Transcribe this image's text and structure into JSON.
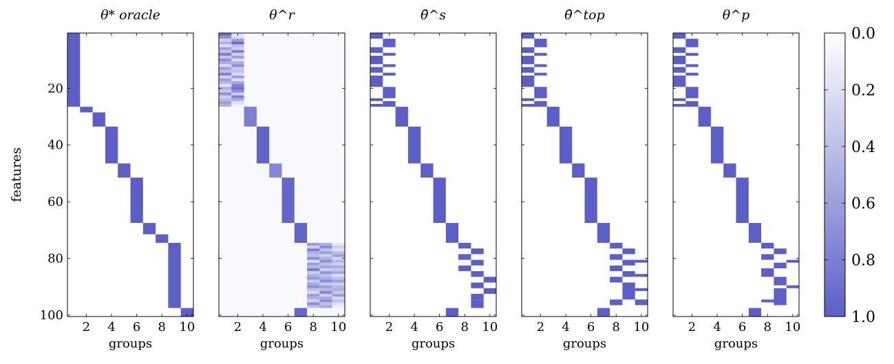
{
  "chart_data": [
    {
      "type": "heatmap",
      "title": "θ* oracle",
      "xlabel": "groups",
      "ylabel": "features",
      "x_ticks": [
        "2",
        "4",
        "6",
        "8",
        "10"
      ],
      "y_ticks": [
        "20",
        "40",
        "60",
        "80",
        "100"
      ],
      "groups": 10,
      "features": 100,
      "rows": [
        [
          1,
          1,
          26,
          1
        ],
        [
          2,
          27,
          28,
          1
        ],
        [
          3,
          29,
          33,
          1
        ],
        [
          4,
          34,
          46,
          1
        ],
        [
          5,
          47,
          51,
          1
        ],
        [
          6,
          52,
          67,
          1
        ],
        [
          7,
          68,
          71,
          1
        ],
        [
          8,
          72,
          74,
          1
        ],
        [
          9,
          75,
          97,
          1
        ],
        [
          10,
          98,
          100,
          1
        ]
      ]
    },
    {
      "type": "heatmap",
      "title": "θ^r",
      "xlabel": "groups",
      "groups": 10,
      "features": 100,
      "background": [
        [
          1,
          100,
          0.04
        ]
      ],
      "rows": [
        [
          1,
          1,
          1,
          0.9
        ],
        [
          2,
          1,
          1,
          0.15
        ],
        [
          1,
          2,
          2,
          0.7
        ],
        [
          2,
          2,
          2,
          0.2
        ],
        [
          1,
          3,
          3,
          0.3
        ],
        [
          2,
          3,
          3,
          0.6
        ],
        [
          1,
          4,
          4,
          0.5
        ],
        [
          2,
          4,
          4,
          0.9
        ],
        [
          1,
          5,
          5,
          0.2
        ],
        [
          2,
          5,
          5,
          0.4
        ],
        [
          1,
          6,
          6,
          0.6
        ],
        [
          2,
          6,
          6,
          0.3
        ],
        [
          1,
          7,
          7,
          0.4
        ],
        [
          2,
          7,
          7,
          0.8
        ],
        [
          1,
          8,
          8,
          0.8
        ],
        [
          2,
          8,
          8,
          0.3
        ],
        [
          1,
          9,
          9,
          0.35
        ],
        [
          2,
          9,
          9,
          0.6
        ],
        [
          1,
          10,
          10,
          0.7
        ],
        [
          2,
          10,
          10,
          0.2
        ],
        [
          1,
          11,
          11,
          0.5
        ],
        [
          2,
          11,
          11,
          0.5
        ],
        [
          1,
          12,
          12,
          0.25
        ],
        [
          2,
          12,
          12,
          0.7
        ],
        [
          1,
          13,
          13,
          0.6
        ],
        [
          2,
          13,
          13,
          0.35
        ],
        [
          1,
          14,
          14,
          0.4
        ],
        [
          2,
          14,
          14,
          0.4
        ],
        [
          1,
          15,
          15,
          0.8
        ],
        [
          2,
          15,
          15,
          0.25
        ],
        [
          1,
          16,
          16,
          0.3
        ],
        [
          2,
          16,
          16,
          0.6
        ],
        [
          1,
          17,
          17,
          0.6
        ],
        [
          2,
          17,
          17,
          0.2
        ],
        [
          1,
          18,
          18,
          0.45
        ],
        [
          2,
          18,
          18,
          0.55
        ],
        [
          1,
          19,
          19,
          0.2
        ],
        [
          2,
          19,
          19,
          0.8
        ],
        [
          1,
          20,
          20,
          0.5
        ],
        [
          2,
          20,
          20,
          0.9
        ],
        [
          1,
          21,
          21,
          0.35
        ],
        [
          2,
          21,
          21,
          0.7
        ],
        [
          1,
          22,
          22,
          0.7
        ],
        [
          2,
          22,
          22,
          0.3
        ],
        [
          1,
          23,
          23,
          0.3
        ],
        [
          2,
          23,
          23,
          0.8
        ],
        [
          1,
          24,
          24,
          0.45
        ],
        [
          2,
          24,
          24,
          0.5
        ],
        [
          1,
          25,
          25,
          0.6
        ],
        [
          2,
          25,
          25,
          0.2
        ],
        [
          1,
          26,
          26,
          0.5
        ],
        [
          2,
          26,
          26,
          0.1
        ],
        [
          3,
          27,
          33,
          0.8
        ],
        [
          4,
          34,
          46,
          0.97
        ],
        [
          5,
          47,
          51,
          0.75
        ],
        [
          6,
          52,
          67,
          0.95
        ],
        [
          7,
          68,
          74,
          0.97
        ],
        [
          8,
          75,
          75,
          0.6
        ],
        [
          9,
          75,
          75,
          0.5
        ],
        [
          10,
          75,
          75,
          0.15
        ],
        [
          8,
          76,
          76,
          0.3
        ],
        [
          9,
          76,
          76,
          0.7
        ],
        [
          10,
          76,
          76,
          0.3
        ],
        [
          8,
          77,
          77,
          0.8
        ],
        [
          9,
          77,
          77,
          0.4
        ],
        [
          10,
          77,
          77,
          0.2
        ],
        [
          8,
          78,
          78,
          0.5
        ],
        [
          9,
          78,
          78,
          0.6
        ],
        [
          10,
          78,
          78,
          0.4
        ],
        [
          8,
          79,
          79,
          0.4
        ],
        [
          9,
          79,
          79,
          0.3
        ],
        [
          10,
          79,
          79,
          0.6
        ],
        [
          8,
          80,
          80,
          0.7
        ],
        [
          9,
          80,
          80,
          0.5
        ],
        [
          10,
          80,
          80,
          0.25
        ],
        [
          8,
          81,
          81,
          0.25
        ],
        [
          9,
          81,
          81,
          0.7
        ],
        [
          10,
          81,
          81,
          0.45
        ],
        [
          8,
          82,
          82,
          0.6
        ],
        [
          9,
          82,
          82,
          0.4
        ],
        [
          10,
          82,
          82,
          0.3
        ],
        [
          8,
          83,
          83,
          0.45
        ],
        [
          9,
          83,
          83,
          0.55
        ],
        [
          10,
          83,
          83,
          0.5
        ],
        [
          8,
          84,
          84,
          0.8
        ],
        [
          9,
          84,
          84,
          0.3
        ],
        [
          10,
          84,
          84,
          0.35
        ],
        [
          8,
          85,
          85,
          0.3
        ],
        [
          9,
          85,
          85,
          0.65
        ],
        [
          10,
          85,
          85,
          0.55
        ],
        [
          8,
          86,
          86,
          0.5
        ],
        [
          9,
          86,
          86,
          0.4
        ],
        [
          10,
          86,
          86,
          0.2
        ],
        [
          8,
          87,
          87,
          0.65
        ],
        [
          9,
          87,
          87,
          0.5
        ],
        [
          10,
          87,
          87,
          0.4
        ],
        [
          8,
          88,
          88,
          0.35
        ],
        [
          9,
          88,
          88,
          0.7
        ],
        [
          10,
          88,
          88,
          0.6
        ],
        [
          8,
          89,
          89,
          0.55
        ],
        [
          9,
          89,
          89,
          0.35
        ],
        [
          10,
          89,
          89,
          0.3
        ],
        [
          8,
          90,
          90,
          0.7
        ],
        [
          9,
          90,
          90,
          0.6
        ],
        [
          10,
          90,
          90,
          0.45
        ],
        [
          8,
          91,
          91,
          0.4
        ],
        [
          9,
          91,
          91,
          0.45
        ],
        [
          10,
          91,
          91,
          0.5
        ],
        [
          8,
          92,
          92,
          0.25
        ],
        [
          9,
          92,
          92,
          0.75
        ],
        [
          10,
          92,
          92,
          0.35
        ],
        [
          8,
          93,
          93,
          0.6
        ],
        [
          9,
          93,
          93,
          0.3
        ],
        [
          10,
          93,
          93,
          0.6
        ],
        [
          8,
          94,
          94,
          0.5
        ],
        [
          9,
          94,
          94,
          0.55
        ],
        [
          10,
          94,
          94,
          0.25
        ],
        [
          8,
          95,
          95,
          0.3
        ],
        [
          9,
          95,
          95,
          0.7
        ],
        [
          10,
          95,
          95,
          0.4
        ],
        [
          8,
          96,
          96,
          0.7
        ],
        [
          9,
          96,
          96,
          0.4
        ],
        [
          10,
          96,
          96,
          0.2
        ],
        [
          8,
          97,
          97,
          0.4
        ],
        [
          9,
          97,
          97,
          0.55
        ],
        [
          10,
          97,
          97,
          0.1
        ],
        [
          7,
          98,
          100,
          0.95
        ]
      ]
    },
    {
      "type": "heatmap",
      "title": "θ̄^s",
      "xlabel": "groups",
      "groups": 10,
      "features": 100,
      "rows": [
        [
          1,
          1,
          2,
          1
        ],
        [
          2,
          3,
          5,
          1
        ],
        [
          1,
          6,
          7,
          1
        ],
        [
          2,
          8,
          8,
          1
        ],
        [
          1,
          9,
          11,
          1
        ],
        [
          2,
          12,
          12,
          1
        ],
        [
          1,
          13,
          14,
          1
        ],
        [
          2,
          15,
          15,
          1
        ],
        [
          1,
          16,
          19,
          1
        ],
        [
          2,
          20,
          23,
          1
        ],
        [
          1,
          24,
          24,
          1
        ],
        [
          2,
          25,
          26,
          1
        ],
        [
          1,
          26,
          26,
          1
        ],
        [
          3,
          27,
          33,
          1
        ],
        [
          4,
          34,
          46,
          1
        ],
        [
          5,
          47,
          51,
          1
        ],
        [
          6,
          52,
          67,
          1
        ],
        [
          7,
          68,
          74,
          1
        ],
        [
          8,
          75,
          76,
          1
        ],
        [
          9,
          77,
          78,
          1
        ],
        [
          8,
          79,
          80,
          1
        ],
        [
          9,
          81,
          82,
          1
        ],
        [
          8,
          83,
          84,
          1
        ],
        [
          9,
          85,
          86,
          1
        ],
        [
          10,
          87,
          88,
          1
        ],
        [
          9,
          89,
          90,
          1
        ],
        [
          10,
          91,
          92,
          1
        ],
        [
          9,
          93,
          94,
          1
        ],
        [
          9,
          95,
          97,
          1
        ],
        [
          7,
          98,
          100,
          1
        ]
      ]
    },
    {
      "type": "heatmap",
      "title": "θ̄^top",
      "xlabel": "groups",
      "groups": 10,
      "features": 100,
      "rows": [
        [
          1,
          1,
          2,
          1
        ],
        [
          2,
          3,
          5,
          1
        ],
        [
          1,
          6,
          7,
          1
        ],
        [
          2,
          8,
          8,
          1
        ],
        [
          1,
          9,
          11,
          1
        ],
        [
          2,
          12,
          12,
          1
        ],
        [
          1,
          13,
          14,
          1
        ],
        [
          2,
          15,
          15,
          1
        ],
        [
          1,
          16,
          19,
          1
        ],
        [
          2,
          20,
          23,
          1
        ],
        [
          1,
          24,
          24,
          1
        ],
        [
          2,
          25,
          26,
          1
        ],
        [
          1,
          26,
          26,
          1
        ],
        [
          3,
          27,
          33,
          1
        ],
        [
          4,
          34,
          46,
          1
        ],
        [
          5,
          47,
          51,
          1
        ],
        [
          6,
          52,
          67,
          1
        ],
        [
          7,
          68,
          74,
          1
        ],
        [
          8,
          75,
          76,
          1
        ],
        [
          9,
          77,
          78,
          1
        ],
        [
          8,
          79,
          80,
          1
        ],
        [
          9,
          81,
          82,
          1
        ],
        [
          10,
          81,
          81,
          1
        ],
        [
          8,
          83,
          84,
          1
        ],
        [
          9,
          85,
          86,
          1
        ],
        [
          10,
          86,
          86,
          1
        ],
        [
          8,
          87,
          88,
          1
        ],
        [
          9,
          89,
          92,
          1
        ],
        [
          10,
          91,
          91,
          1
        ],
        [
          9,
          93,
          94,
          1
        ],
        [
          10,
          95,
          96,
          1
        ],
        [
          8,
          95,
          96,
          1
        ],
        [
          7,
          98,
          100,
          1
        ]
      ]
    },
    {
      "type": "heatmap",
      "title": "θ^p",
      "xlabel": "groups",
      "groups": 10,
      "features": 100,
      "rows": [
        [
          1,
          1,
          2,
          1
        ],
        [
          2,
          3,
          5,
          1
        ],
        [
          1,
          6,
          7,
          1
        ],
        [
          2,
          8,
          8,
          1
        ],
        [
          1,
          9,
          11,
          1
        ],
        [
          2,
          12,
          12,
          1
        ],
        [
          1,
          13,
          14,
          1
        ],
        [
          2,
          15,
          15,
          1
        ],
        [
          1,
          16,
          19,
          1
        ],
        [
          2,
          20,
          23,
          1
        ],
        [
          1,
          24,
          24,
          1
        ],
        [
          2,
          25,
          26,
          1
        ],
        [
          1,
          26,
          26,
          1
        ],
        [
          3,
          27,
          33,
          1
        ],
        [
          4,
          34,
          46,
          1
        ],
        [
          5,
          47,
          51,
          1
        ],
        [
          6,
          52,
          67,
          1
        ],
        [
          7,
          68,
          74,
          1
        ],
        [
          8,
          75,
          76,
          1
        ],
        [
          9,
          77,
          78,
          1
        ],
        [
          8,
          79,
          80,
          1
        ],
        [
          10,
          81,
          81,
          1
        ],
        [
          9,
          82,
          83,
          1
        ],
        [
          8,
          84,
          86,
          1
        ],
        [
          9,
          87,
          89,
          1
        ],
        [
          10,
          90,
          90,
          1
        ],
        [
          9,
          91,
          96,
          1
        ],
        [
          8,
          95,
          95,
          1
        ],
        [
          7,
          98,
          100,
          1
        ]
      ]
    }
  ],
  "colorbar": {
    "ticks": [
      "0.0",
      "0.2",
      "0.4",
      "0.6",
      "0.8",
      "1.0"
    ],
    "range": [
      0,
      1
    ],
    "color_low": "#ffffff",
    "color_high": "#5b5fc7"
  }
}
